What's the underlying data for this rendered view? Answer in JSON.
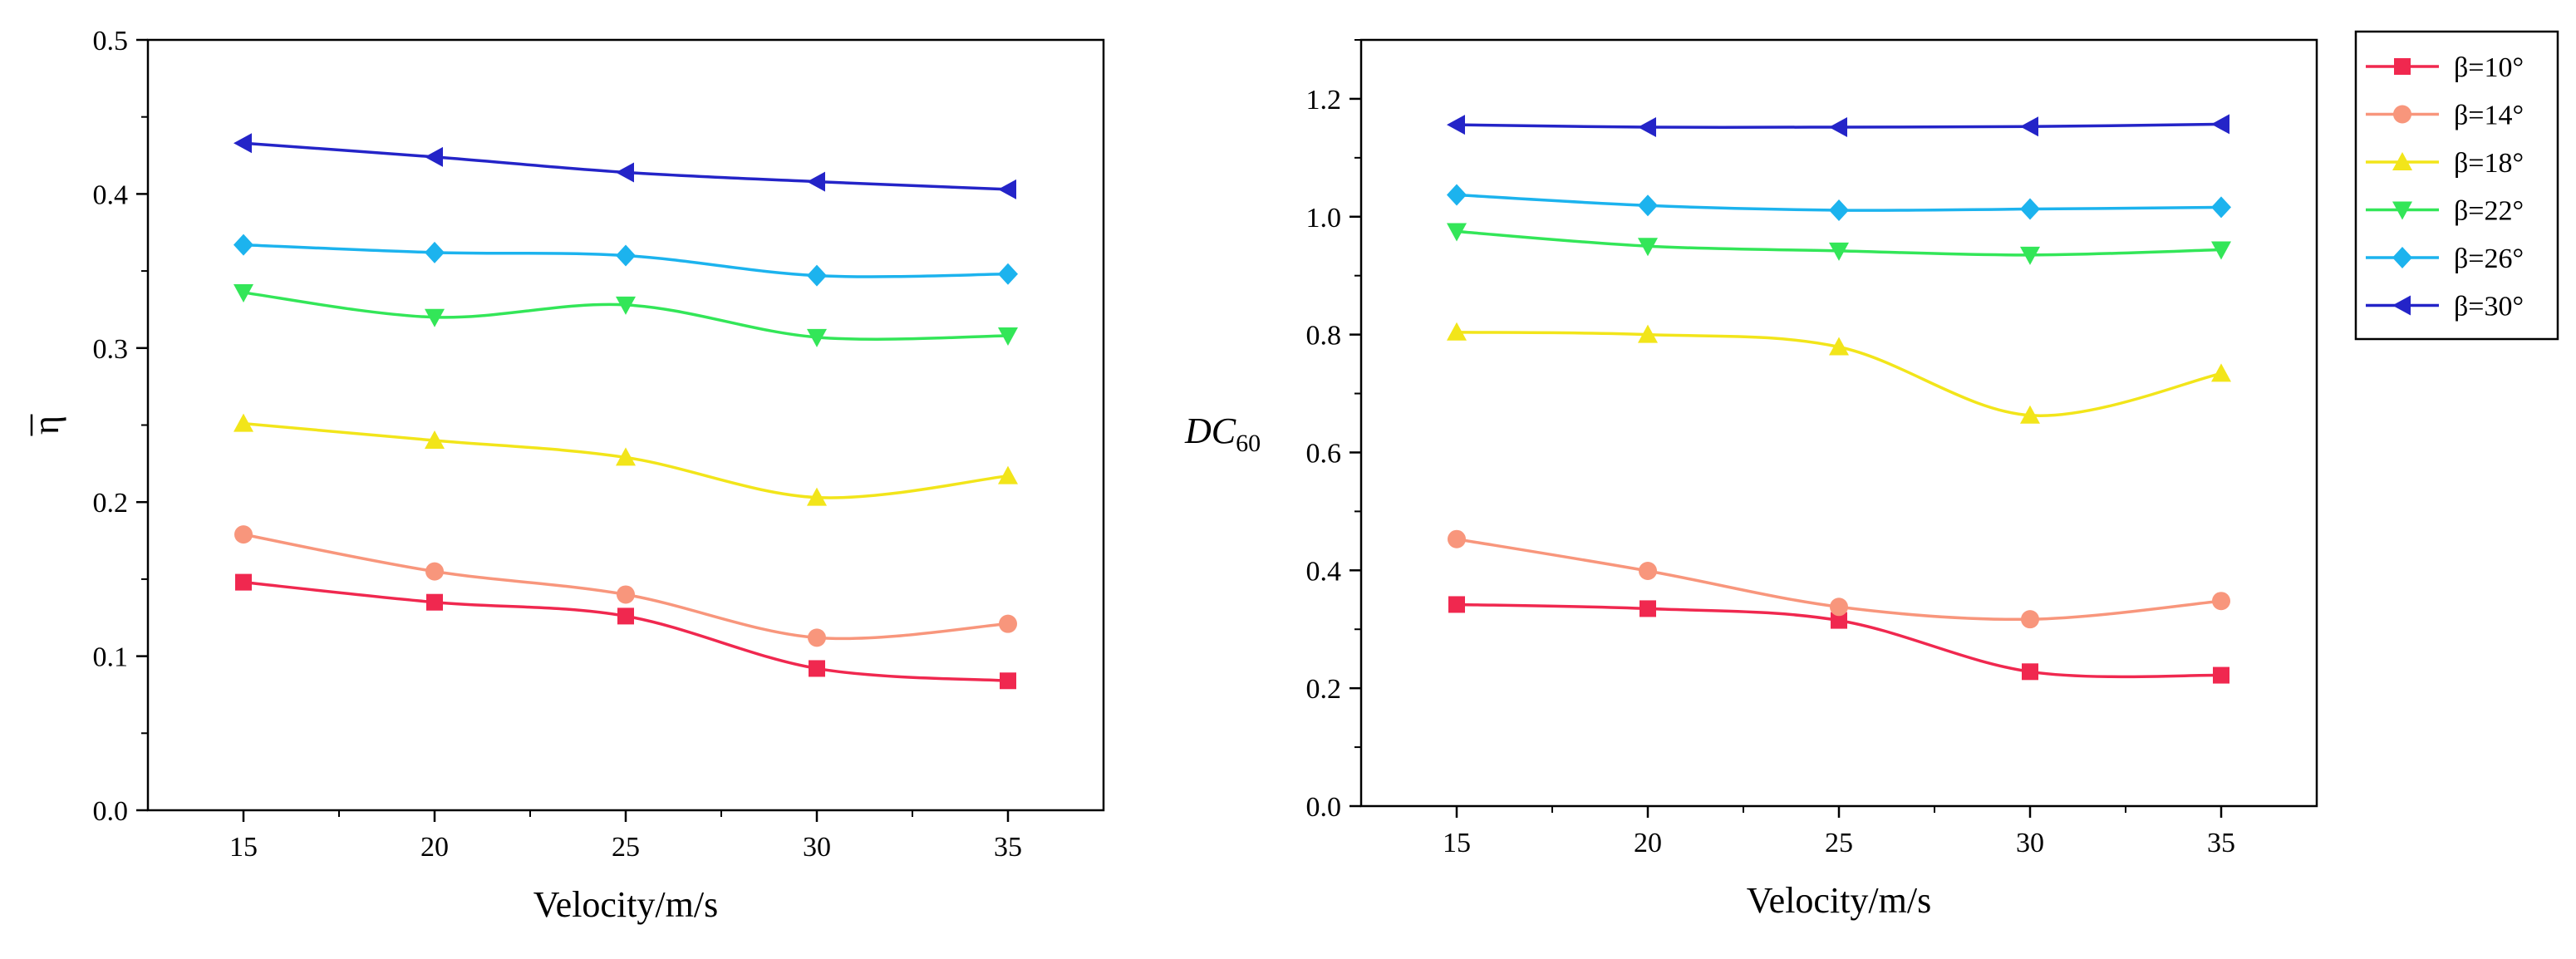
{
  "chart_data": [
    {
      "type": "line",
      "title": "",
      "xlabel": "Velocity/m/s",
      "ylabel": "η",
      "x": [
        15,
        20,
        25,
        30,
        35
      ],
      "xlim": [
        12.5,
        37.5
      ],
      "ylim": [
        0,
        0.5
      ],
      "xticks": [
        "15",
        "20",
        "25",
        "30",
        "35"
      ],
      "yticks": [
        "0.0",
        "0.1",
        "0.2",
        "0.3",
        "0.4",
        "0.5"
      ],
      "grid": false,
      "series": [
        {
          "name": "β=10°",
          "color": "#f0284f",
          "marker": "square",
          "values": [
            0.148,
            0.135,
            0.126,
            0.092,
            0.084
          ]
        },
        {
          "name": "β=14°",
          "color": "#f8967c",
          "marker": "circle",
          "values": [
            0.179,
            0.155,
            0.14,
            0.112,
            0.121
          ]
        },
        {
          "name": "β=18°",
          "color": "#f2e51a",
          "marker": "triangle-up",
          "values": [
            0.251,
            0.24,
            0.229,
            0.203,
            0.217
          ]
        },
        {
          "name": "β=22°",
          "color": "#33e658",
          "marker": "triangle-down",
          "values": [
            0.336,
            0.32,
            0.328,
            0.307,
            0.308
          ]
        },
        {
          "name": "β=26°",
          "color": "#1cb3ee",
          "marker": "diamond",
          "values": [
            0.367,
            0.362,
            0.36,
            0.347,
            0.348
          ]
        },
        {
          "name": "β=30°",
          "color": "#2424c8",
          "marker": "triangle-left",
          "values": [
            0.433,
            0.424,
            0.414,
            0.408,
            0.403
          ]
        }
      ]
    },
    {
      "type": "line",
      "title": "",
      "xlabel": "Velocity/m/s",
      "ylabel": "DC",
      "ylabel_sub": "60",
      "x": [
        15,
        20,
        25,
        30,
        35
      ],
      "xlim": [
        12.5,
        37.5
      ],
      "ylim": [
        0,
        1.3
      ],
      "xticks": [
        "15",
        "20",
        "25",
        "30",
        "35"
      ],
      "yticks": [
        "0.0",
        "0.2",
        "0.4",
        "0.6",
        "0.8",
        "1.0",
        "1.2"
      ],
      "grid": false,
      "legend": "outside-right",
      "series": [
        {
          "name": "β=10°",
          "color": "#f0284f",
          "marker": "square",
          "values": [
            0.342,
            0.335,
            0.315,
            0.228,
            0.222
          ]
        },
        {
          "name": "β=14°",
          "color": "#f8967c",
          "marker": "circle",
          "values": [
            0.453,
            0.399,
            0.338,
            0.317,
            0.348
          ]
        },
        {
          "name": "β=18°",
          "color": "#f2e51a",
          "marker": "triangle-up",
          "values": [
            0.804,
            0.8,
            0.779,
            0.663,
            0.734
          ]
        },
        {
          "name": "β=22°",
          "color": "#33e658",
          "marker": "triangle-down",
          "values": [
            0.975,
            0.95,
            0.942,
            0.935,
            0.944
          ]
        },
        {
          "name": "β=26°",
          "color": "#1cb3ee",
          "marker": "diamond",
          "values": [
            1.037,
            1.019,
            1.011,
            1.013,
            1.016
          ]
        },
        {
          "name": "β=30°",
          "color": "#2424c8",
          "marker": "triangle-left",
          "values": [
            1.156,
            1.152,
            1.152,
            1.153,
            1.157
          ]
        }
      ]
    }
  ]
}
